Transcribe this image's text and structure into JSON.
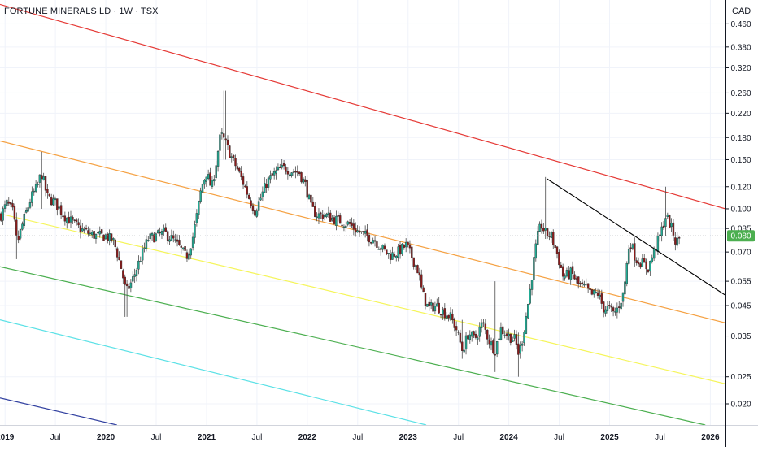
{
  "header": {
    "title": "FORTUNE MINERALS LD · 1W · TSX",
    "currency": "CAD"
  },
  "price_tag": "0.080",
  "colors": {
    "up": "#22ab94",
    "down": "#8b1a1a",
    "wick": "#4a4a4a",
    "red_line": "#e53935",
    "orange_line": "#f5a142",
    "yellow_line": "#f5f55a",
    "green_line": "#4caf50",
    "cyan_line": "#5ce1e6",
    "blue_line": "#303f9f",
    "trend_line": "#000000",
    "price_tag": "#4caf50",
    "grid": "#f0f3fa",
    "axis": "#131722"
  },
  "chart_data": {
    "type": "candlestick",
    "title": "FORTUNE MINERALS LD · 1W · TSX",
    "y_scale": "log",
    "y_unit": "CAD",
    "x_ticks": [
      "2019",
      "Jul",
      "2020",
      "Jul",
      "2021",
      "Jul",
      "2022",
      "Jul",
      "2023",
      "Jul",
      "2024",
      "Jul",
      "2025",
      "Jul",
      "2026"
    ],
    "x_tick_dates": [
      2019.0,
      2019.5,
      2020.0,
      2020.5,
      2021.0,
      2021.5,
      2022.0,
      2022.5,
      2023.0,
      2023.5,
      2024.0,
      2024.5,
      2025.0,
      2025.5,
      2026.0
    ],
    "x_range": [
      2018.95,
      2026.15
    ],
    "y_ticks": [
      "0.460",
      "0.380",
      "0.320",
      "0.260",
      "0.220",
      "0.180",
      "0.150",
      "0.120",
      "0.100",
      "0.085",
      "0.070",
      "0.055",
      "0.045",
      "0.035",
      "0.025",
      "0.020"
    ],
    "y_tick_values": [
      0.46,
      0.38,
      0.32,
      0.26,
      0.22,
      0.18,
      0.15,
      0.12,
      0.1,
      0.085,
      0.07,
      0.055,
      0.045,
      0.035,
      0.025,
      0.02
    ],
    "y_range": [
      0.0168,
      0.56
    ],
    "last_price": 0.08,
    "price_path": [
      [
        2018.96,
        0.095
      ],
      [
        2019.02,
        0.105
      ],
      [
        2019.08,
        0.097
      ],
      [
        2019.12,
        0.075
      ],
      [
        2019.18,
        0.09
      ],
      [
        2019.26,
        0.11
      ],
      [
        2019.32,
        0.12
      ],
      [
        2019.36,
        0.135
      ],
      [
        2019.42,
        0.11
      ],
      [
        2019.5,
        0.105
      ],
      [
        2019.58,
        0.095
      ],
      [
        2019.66,
        0.09
      ],
      [
        2019.74,
        0.085
      ],
      [
        2019.82,
        0.082
      ],
      [
        2019.9,
        0.08
      ],
      [
        2020.0,
        0.08
      ],
      [
        2020.08,
        0.076
      ],
      [
        2020.12,
        0.068
      ],
      [
        2020.16,
        0.06
      ],
      [
        2020.2,
        0.05
      ],
      [
        2020.26,
        0.055
      ],
      [
        2020.34,
        0.066
      ],
      [
        2020.42,
        0.078
      ],
      [
        2020.5,
        0.08
      ],
      [
        2020.58,
        0.082
      ],
      [
        2020.66,
        0.078
      ],
      [
        2020.74,
        0.072
      ],
      [
        2020.8,
        0.067
      ],
      [
        2020.86,
        0.078
      ],
      [
        2020.9,
        0.093
      ],
      [
        2020.95,
        0.12
      ],
      [
        2021.0,
        0.135
      ],
      [
        2021.05,
        0.118
      ],
      [
        2021.1,
        0.15
      ],
      [
        2021.14,
        0.185
      ],
      [
        2021.18,
        0.175
      ],
      [
        2021.24,
        0.155
      ],
      [
        2021.3,
        0.14
      ],
      [
        2021.36,
        0.125
      ],
      [
        2021.42,
        0.11
      ],
      [
        2021.48,
        0.098
      ],
      [
        2021.54,
        0.11
      ],
      [
        2021.6,
        0.125
      ],
      [
        2021.66,
        0.132
      ],
      [
        2021.72,
        0.138
      ],
      [
        2021.78,
        0.14
      ],
      [
        2021.84,
        0.137
      ],
      [
        2021.92,
        0.135
      ],
      [
        2021.98,
        0.122
      ],
      [
        2022.04,
        0.1
      ],
      [
        2022.1,
        0.095
      ],
      [
        2022.18,
        0.095
      ],
      [
        2022.26,
        0.092
      ],
      [
        2022.34,
        0.09
      ],
      [
        2022.42,
        0.088
      ],
      [
        2022.5,
        0.083
      ],
      [
        2022.58,
        0.08
      ],
      [
        2022.66,
        0.078
      ],
      [
        2022.74,
        0.072
      ],
      [
        2022.82,
        0.068
      ],
      [
        2022.9,
        0.07
      ],
      [
        2022.98,
        0.074
      ],
      [
        2023.04,
        0.067
      ],
      [
        2023.1,
        0.06
      ],
      [
        2023.14,
        0.05
      ],
      [
        2023.2,
        0.044
      ],
      [
        2023.28,
        0.045
      ],
      [
        2023.34,
        0.043
      ],
      [
        2023.42,
        0.041
      ],
      [
        2023.48,
        0.037
      ],
      [
        2023.54,
        0.031
      ],
      [
        2023.6,
        0.036
      ],
      [
        2023.66,
        0.034
      ],
      [
        2023.74,
        0.039
      ],
      [
        2023.8,
        0.034
      ],
      [
        2023.86,
        0.031
      ],
      [
        2023.92,
        0.037
      ],
      [
        2024.0,
        0.035
      ],
      [
        2024.06,
        0.034
      ],
      [
        2024.1,
        0.03
      ],
      [
        2024.14,
        0.035
      ],
      [
        2024.2,
        0.048
      ],
      [
        2024.24,
        0.062
      ],
      [
        2024.28,
        0.078
      ],
      [
        2024.32,
        0.088
      ],
      [
        2024.36,
        0.082
      ],
      [
        2024.42,
        0.08
      ],
      [
        2024.48,
        0.069
      ],
      [
        2024.54,
        0.057
      ],
      [
        2024.62,
        0.059
      ],
      [
        2024.7,
        0.053
      ],
      [
        2024.76,
        0.052
      ],
      [
        2024.82,
        0.049
      ],
      [
        2024.88,
        0.05
      ],
      [
        2024.94,
        0.044
      ],
      [
        2025.0,
        0.044
      ],
      [
        2025.04,
        0.042
      ],
      [
        2025.08,
        0.044
      ],
      [
        2025.14,
        0.05
      ],
      [
        2025.2,
        0.078
      ],
      [
        2025.26,
        0.066
      ],
      [
        2025.32,
        0.064
      ],
      [
        2025.38,
        0.061
      ],
      [
        2025.44,
        0.07
      ],
      [
        2025.5,
        0.08
      ],
      [
        2025.56,
        0.095
      ],
      [
        2025.62,
        0.084
      ],
      [
        2025.66,
        0.075
      ],
      [
        2025.7,
        0.08
      ]
    ],
    "spikes": [
      {
        "x": 2019.36,
        "high": 0.16,
        "low": 0.1
      },
      {
        "x": 2019.12,
        "high": 0.097,
        "low": 0.066
      },
      {
        "x": 2020.2,
        "high": 0.052,
        "low": 0.041
      },
      {
        "x": 2021.18,
        "high": 0.265,
        "low": 0.15
      },
      {
        "x": 2023.54,
        "high": 0.04,
        "low": 0.029
      },
      {
        "x": 2023.86,
        "high": 0.055,
        "low": 0.026
      },
      {
        "x": 2024.1,
        "high": 0.036,
        "low": 0.025
      },
      {
        "x": 2024.36,
        "high": 0.13,
        "low": 0.078
      },
      {
        "x": 2025.56,
        "high": 0.12,
        "low": 0.08
      }
    ],
    "channel_lines": [
      {
        "color_key": "red_line",
        "p1": [
          2018.95,
          0.54
        ],
        "p2": [
          2026.15,
          0.1
        ]
      },
      {
        "color_key": "orange_line",
        "p1": [
          2018.95,
          0.175
        ],
        "p2": [
          2026.15,
          0.039
        ]
      },
      {
        "color_key": "yellow_line",
        "p1": [
          2018.95,
          0.096
        ],
        "p2": [
          2026.15,
          0.0236
        ]
      },
      {
        "color_key": "green_line",
        "p1": [
          2018.95,
          0.062
        ],
        "p2": [
          2025.95,
          0.0168
        ]
      },
      {
        "color_key": "cyan_line",
        "p1": [
          2018.95,
          0.04
        ],
        "p2": [
          2023.18,
          0.0168
        ]
      },
      {
        "color_key": "blue_line",
        "p1": [
          2018.95,
          0.021
        ],
        "p2": [
          2020.11,
          0.0168
        ]
      }
    ],
    "trend_line": {
      "p1": [
        2024.38,
        0.128
      ],
      "p2": [
        2026.15,
        0.049
      ]
    }
  }
}
